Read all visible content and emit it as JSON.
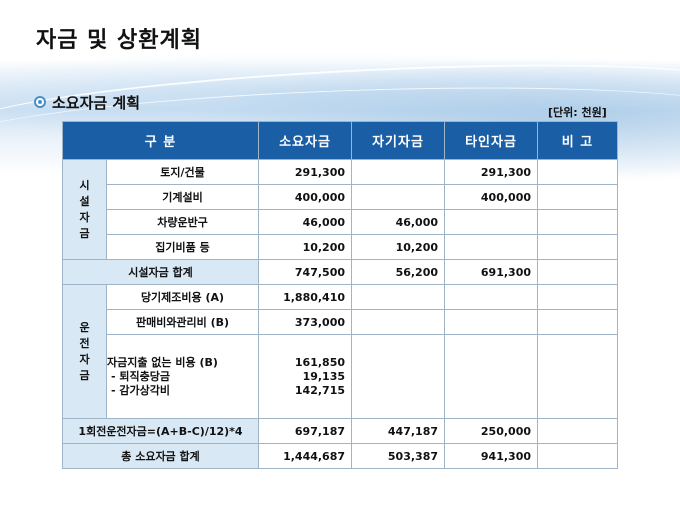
{
  "title": "자금 및 상환계획",
  "section": "소요자금 계획",
  "unit": "[단위: 천원]",
  "table": {
    "headers": [
      "구 분",
      "소요자금",
      "자기자금",
      "타인자금",
      "비 고"
    ],
    "facility_group": [
      "시",
      "설",
      "자",
      "금"
    ],
    "facility_rows": [
      {
        "item": "토지/건물",
        "required": "291,300",
        "own": "",
        "other": "291,300",
        "note": ""
      },
      {
        "item": "기계설비",
        "required": "400,000",
        "own": "",
        "other": "400,000",
        "note": ""
      },
      {
        "item": "차량운반구",
        "required": "46,000",
        "own": "46,000",
        "other": "",
        "note": ""
      },
      {
        "item": "집기비품 등",
        "required": "10,200",
        "own": "10,200",
        "other": "",
        "note": ""
      }
    ],
    "facility_total": {
      "label": "시설자금 합계",
      "required": "747,500",
      "own": "56,200",
      "other": "691,300",
      "note": ""
    },
    "operating_group": [
      "운",
      "전",
      "자",
      "금"
    ],
    "operating_rows": [
      {
        "item": "당기제조비용 (A)",
        "required": "1,880,410",
        "own": "",
        "other": "",
        "note": ""
      },
      {
        "item": "판매비와관리비 (B)",
        "required": "373,000",
        "own": "",
        "other": "",
        "note": ""
      }
    ],
    "noncash": {
      "item_lines": [
        "자금지출 없는 비용 (B)",
        "- 퇴직충당금",
        "- 감가상각비"
      ],
      "required_lines": [
        "161,850",
        "19,135",
        "142,715"
      ]
    },
    "operating_round": {
      "label": "1회전운전자금=(A+B-C)/12)*4",
      "required": "697,187",
      "own": "447,187",
      "other": "250,000",
      "note": ""
    },
    "grand_total": {
      "label": "총 소요자금 합계",
      "required": "1,444,687",
      "own": "503,387",
      "other": "941,300",
      "note": ""
    }
  }
}
